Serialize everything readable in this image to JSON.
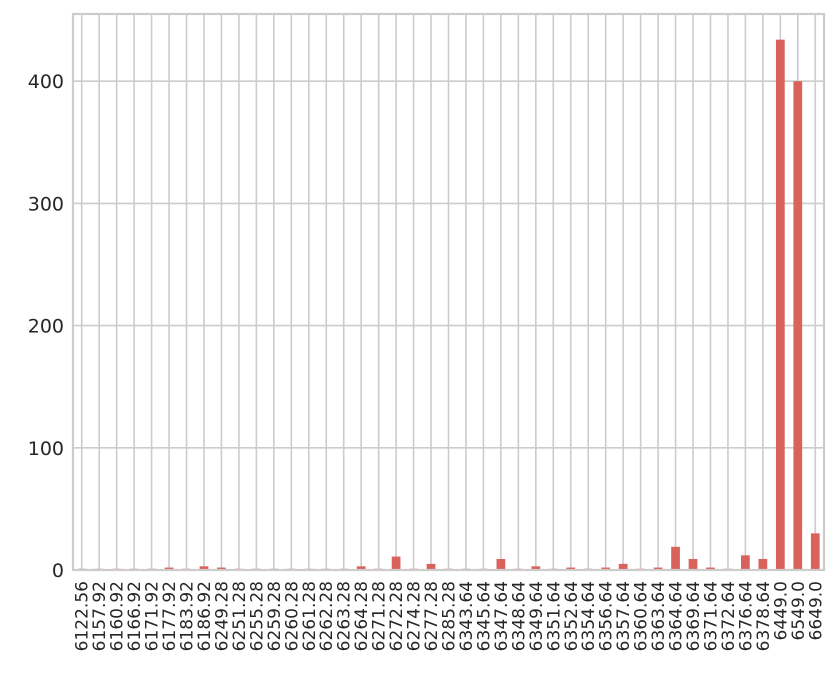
{
  "chart_data": {
    "type": "bar",
    "title": "",
    "xlabel": "",
    "ylabel": "",
    "ylim": [
      0,
      455
    ],
    "yticks": [
      0,
      100,
      200,
      300,
      400
    ],
    "grid": true,
    "bar_color": "#d9625a",
    "categories": [
      "6122.56",
      "6157.92",
      "6160.92",
      "6166.92",
      "6171.92",
      "6177.92",
      "6183.92",
      "6186.92",
      "6249.28",
      "6251.28",
      "6255.28",
      "6259.28",
      "6260.28",
      "6261.28",
      "6262.28",
      "6263.28",
      "6264.28",
      "6271.28",
      "6272.28",
      "6274.28",
      "6277.28",
      "6285.28",
      "6343.64",
      "6345.64",
      "6347.64",
      "6348.64",
      "6349.64",
      "6351.64",
      "6352.64",
      "6354.64",
      "6356.64",
      "6357.64",
      "6360.64",
      "6363.64",
      "6364.64",
      "6369.64",
      "6371.64",
      "6372.64",
      "6376.64",
      "6378.64",
      "6449.0",
      "6549.0",
      "6649.0"
    ],
    "values": [
      1,
      1,
      1,
      1,
      1,
      2,
      1,
      3,
      2,
      1,
      1,
      1,
      1,
      1,
      1,
      1,
      3,
      1,
      11,
      1,
      5,
      1,
      1,
      1,
      9,
      1,
      3,
      1,
      2,
      1,
      2,
      5,
      1,
      2,
      19,
      9,
      2,
      1,
      12,
      9,
      434,
      400,
      30
    ]
  }
}
